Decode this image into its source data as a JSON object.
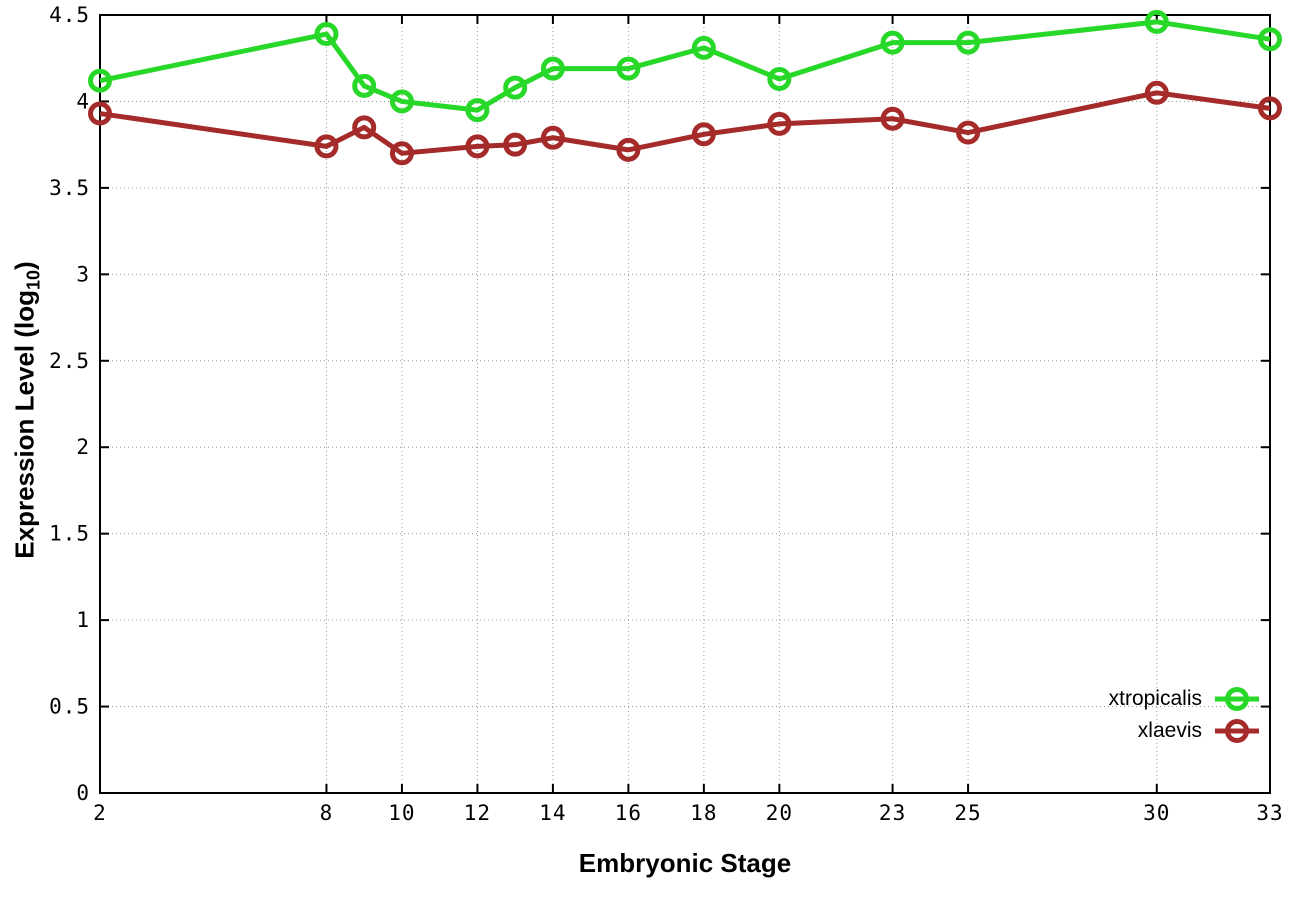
{
  "chart_data": {
    "type": "line",
    "title": "",
    "xlabel": "Embryonic Stage",
    "ylabel": {
      "text": "Expression Level (log",
      "sub": "10",
      "end": ")"
    },
    "xlim": [
      2,
      33
    ],
    "ylim": [
      0,
      4.5
    ],
    "xticks": [
      2,
      8,
      10,
      12,
      14,
      16,
      18,
      20,
      23,
      25,
      30,
      33
    ],
    "yticks": [
      0,
      0.5,
      1,
      1.5,
      2,
      2.5,
      3,
      3.5,
      4,
      4.5
    ],
    "grid": "dotted",
    "legend_position": "bottom-right",
    "marker": "open-circle",
    "axis_color": "#000000",
    "grid_color": "#9a9a9a",
    "x": [
      2,
      8,
      9,
      10,
      12,
      13,
      14,
      16,
      18,
      20,
      23,
      25,
      30,
      33
    ],
    "series": [
      {
        "name": "xtropicalis",
        "color": "#28d828",
        "values": [
          4.12,
          4.39,
          4.09,
          4.0,
          3.95,
          4.08,
          4.19,
          4.19,
          4.31,
          4.13,
          4.34,
          4.34,
          4.46,
          4.36
        ]
      },
      {
        "name": "xlaevis",
        "color": "#a52a2a",
        "values": [
          3.93,
          3.74,
          3.85,
          3.7,
          3.74,
          3.75,
          3.79,
          3.72,
          3.81,
          3.87,
          3.9,
          3.82,
          4.05,
          3.96
        ]
      }
    ]
  }
}
